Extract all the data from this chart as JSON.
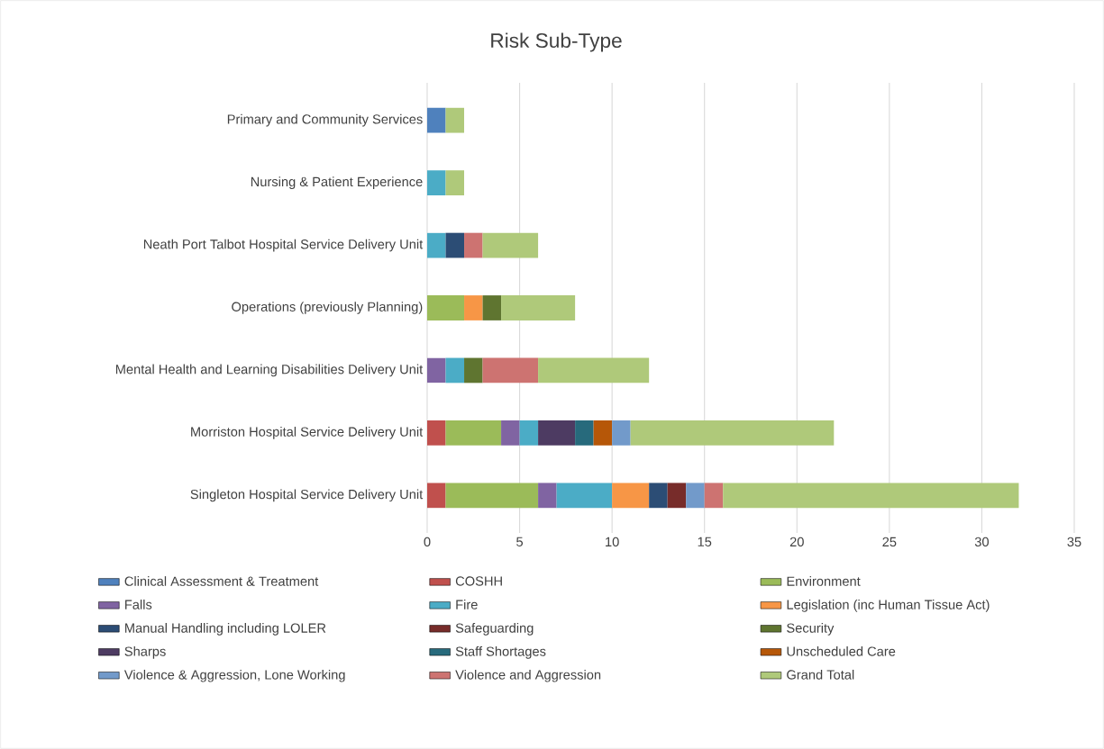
{
  "chart_data": {
    "type": "bar",
    "orientation": "horizontal",
    "stacked": true,
    "title": "Risk Sub-Type",
    "categories": [
      "Primary and Community Services",
      "Nursing & Patient Experience",
      "Neath Port Talbot Hospital Service Delivery Unit",
      "Operations (previously Planning)",
      "Mental Health and Learning Disabilities Delivery Unit",
      "Morriston Hospital Service Delivery Unit",
      "Singleton Hospital Service Delivery Unit"
    ],
    "series": [
      {
        "name": "Clinical Assessment & Treatment",
        "color": "#4f81bd",
        "values": [
          1,
          null,
          null,
          null,
          null,
          null,
          null
        ]
      },
      {
        "name": "COSHH",
        "color": "#c0504d",
        "values": [
          null,
          null,
          null,
          null,
          null,
          1,
          1
        ]
      },
      {
        "name": "Environment",
        "color": "#9bbb59",
        "values": [
          null,
          null,
          null,
          2,
          null,
          3,
          5
        ]
      },
      {
        "name": "Falls",
        "color": "#8064a2",
        "values": [
          null,
          null,
          null,
          null,
          1,
          1,
          1
        ]
      },
      {
        "name": "Fire",
        "color": "#4bacc6",
        "values": [
          null,
          1,
          1,
          null,
          1,
          1,
          3
        ]
      },
      {
        "name": "Legislation (inc Human Tissue Act)",
        "color": "#f79646",
        "values": [
          null,
          null,
          null,
          1,
          null,
          null,
          2
        ]
      },
      {
        "name": "Manual Handling including LOLER",
        "color": "#2c4d75",
        "values": [
          null,
          null,
          1,
          null,
          null,
          null,
          1
        ]
      },
      {
        "name": "Safeguarding",
        "color": "#772c2a",
        "values": [
          null,
          null,
          null,
          null,
          null,
          null,
          1
        ]
      },
      {
        "name": "Security",
        "color": "#5f7530",
        "values": [
          null,
          null,
          null,
          1,
          1,
          null,
          null
        ]
      },
      {
        "name": "Sharps",
        "color": "#4d3b62",
        "values": [
          null,
          null,
          null,
          null,
          null,
          2,
          null
        ]
      },
      {
        "name": "Staff Shortages",
        "color": "#276a7c",
        "values": [
          null,
          null,
          null,
          null,
          null,
          1,
          null
        ]
      },
      {
        "name": "Unscheduled Care",
        "color": "#b65708",
        "values": [
          null,
          null,
          null,
          null,
          null,
          1,
          null
        ]
      },
      {
        "name": "Violence & Aggression, Lone Working",
        "color": "#729aca",
        "values": [
          null,
          null,
          null,
          null,
          null,
          1,
          1
        ]
      },
      {
        "name": "Violence and Aggression",
        "color": "#cd7371",
        "values": [
          null,
          null,
          1,
          null,
          3,
          null,
          1
        ]
      },
      {
        "name": "Grand Total",
        "color": "#afc97a",
        "values": [
          1,
          1,
          3,
          4,
          6,
          11,
          16
        ]
      }
    ],
    "xlim": [
      0,
      35
    ],
    "xticks": [
      0,
      5,
      10,
      15,
      20,
      25,
      30,
      35
    ],
    "grid": "x",
    "legend": "bottom"
  }
}
